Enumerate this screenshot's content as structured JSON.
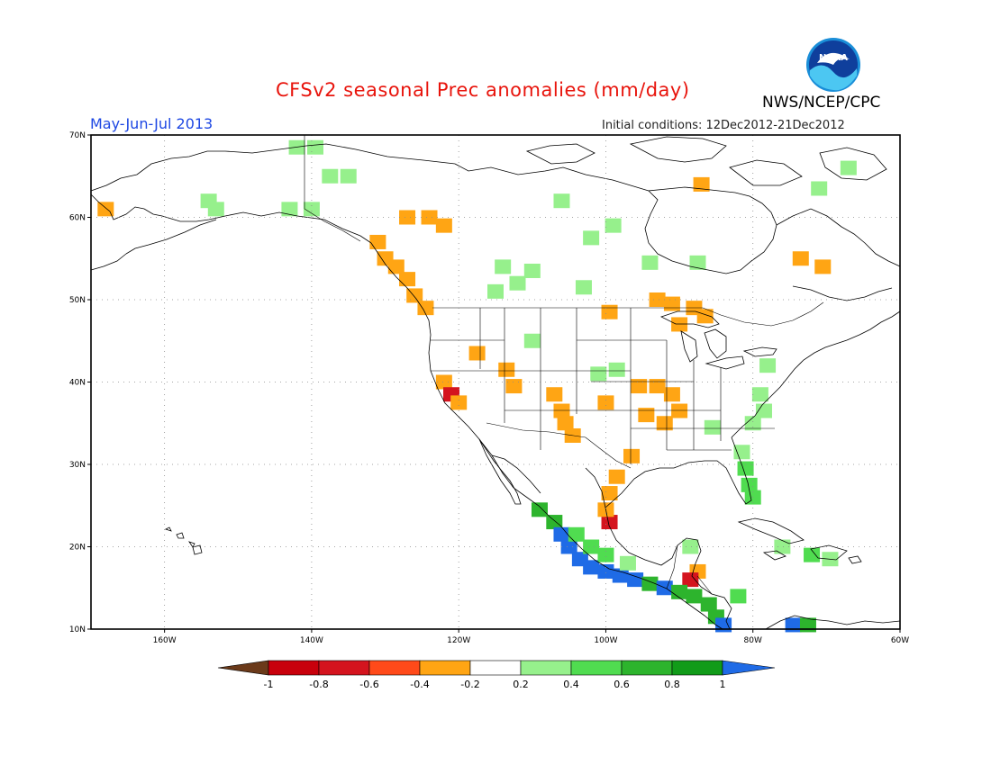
{
  "title": "CFSv2 seasonal Prec anomalies (mm/day)",
  "period": "May-Jun-Jul 2013",
  "initial_conditions": "Initial conditions: 12Dec2012-21Dec2012",
  "agency": "NWS/NCEP/CPC",
  "logo_text": "NOAA",
  "map": {
    "lon_range": [
      -170,
      -60
    ],
    "lat_range": [
      10,
      70
    ],
    "lat_ticks": [
      {
        "value": 70,
        "label": "70N"
      },
      {
        "value": 60,
        "label": "60N"
      },
      {
        "value": 50,
        "label": "50N"
      },
      {
        "value": 40,
        "label": "40N"
      },
      {
        "value": 30,
        "label": "30N"
      },
      {
        "value": 20,
        "label": "20N"
      },
      {
        "value": 10,
        "label": "10N"
      }
    ],
    "lon_ticks": [
      {
        "value": -160,
        "label": "160W"
      },
      {
        "value": -140,
        "label": "140W"
      },
      {
        "value": -120,
        "label": "120W"
      },
      {
        "value": -100,
        "label": "100W"
      },
      {
        "value": -80,
        "label": "80W"
      },
      {
        "value": -60,
        "label": "60W"
      }
    ],
    "grid": "dotted"
  },
  "colorbar": {
    "labels": [
      "-1",
      "-0.8",
      "-0.6",
      "-0.4",
      "-0.2",
      "0.2",
      "0.4",
      "0.6",
      "0.8",
      "1"
    ],
    "colors": [
      "#6b3a1a",
      "#c8000c",
      "#d4141e",
      "#ff4a1a",
      "#ffa514",
      "#ffffff",
      "#96f08c",
      "#50dc50",
      "#2db42d",
      "#119b19",
      "#1f6be6"
    ]
  },
  "anomaly_cells": [
    {
      "lon": -142,
      "lat": 68.5,
      "c": "#96f08c"
    },
    {
      "lon": -139.5,
      "lat": 68.5,
      "c": "#96f08c"
    },
    {
      "lon": -137.5,
      "lat": 65,
      "c": "#96f08c"
    },
    {
      "lon": -135,
      "lat": 65,
      "c": "#96f08c"
    },
    {
      "lon": -154,
      "lat": 62,
      "c": "#96f08c"
    },
    {
      "lon": -153,
      "lat": 61,
      "c": "#96f08c"
    },
    {
      "lon": -143,
      "lat": 61,
      "c": "#96f08c"
    },
    {
      "lon": -140,
      "lat": 61,
      "c": "#96f08c"
    },
    {
      "lon": -168,
      "lat": 61,
      "c": "#ffa514"
    },
    {
      "lon": -127,
      "lat": 60,
      "c": "#ffa514"
    },
    {
      "lon": -124,
      "lat": 60,
      "c": "#ffa514"
    },
    {
      "lon": -122,
      "lat": 59,
      "c": "#ffa514"
    },
    {
      "lon": -131,
      "lat": 57,
      "c": "#ffa514"
    },
    {
      "lon": -130,
      "lat": 55,
      "c": "#ffa514"
    },
    {
      "lon": -128.5,
      "lat": 54,
      "c": "#ffa514"
    },
    {
      "lon": -127,
      "lat": 52.5,
      "c": "#ffa514"
    },
    {
      "lon": -126,
      "lat": 50.5,
      "c": "#ffa514"
    },
    {
      "lon": -124.5,
      "lat": 49,
      "c": "#ffa514"
    },
    {
      "lon": -114,
      "lat": 54,
      "c": "#96f08c"
    },
    {
      "lon": -110,
      "lat": 53.5,
      "c": "#96f08c"
    },
    {
      "lon": -112,
      "lat": 52,
      "c": "#96f08c"
    },
    {
      "lon": -115,
      "lat": 51,
      "c": "#96f08c"
    },
    {
      "lon": -102,
      "lat": 57.5,
      "c": "#96f08c"
    },
    {
      "lon": -99,
      "lat": 59,
      "c": "#96f08c"
    },
    {
      "lon": -106,
      "lat": 62,
      "c": "#96f08c"
    },
    {
      "lon": -103,
      "lat": 51.5,
      "c": "#96f08c"
    },
    {
      "lon": -94,
      "lat": 54.5,
      "c": "#96f08c"
    },
    {
      "lon": -87.5,
      "lat": 54.5,
      "c": "#96f08c"
    },
    {
      "lon": -73.5,
      "lat": 55,
      "c": "#ffa514"
    },
    {
      "lon": -70.5,
      "lat": 54,
      "c": "#ffa514"
    },
    {
      "lon": -87,
      "lat": 64,
      "c": "#ffa514"
    },
    {
      "lon": -71,
      "lat": 63.5,
      "c": "#96f08c"
    },
    {
      "lon": -67,
      "lat": 66,
      "c": "#96f08c"
    },
    {
      "lon": -91,
      "lat": 49.5,
      "c": "#ffa514"
    },
    {
      "lon": -88,
      "lat": 49,
      "c": "#ffa514"
    },
    {
      "lon": -90,
      "lat": 47,
      "c": "#ffa514"
    },
    {
      "lon": -86.5,
      "lat": 48,
      "c": "#ffa514"
    },
    {
      "lon": -93,
      "lat": 50,
      "c": "#ffa514"
    },
    {
      "lon": -99.5,
      "lat": 48.5,
      "c": "#ffa514"
    },
    {
      "lon": -110,
      "lat": 45,
      "c": "#96f08c"
    },
    {
      "lon": -117.5,
      "lat": 43.5,
      "c": "#ffa514"
    },
    {
      "lon": -113.5,
      "lat": 41.5,
      "c": "#ffa514"
    },
    {
      "lon": -122,
      "lat": 40,
      "c": "#ffa514"
    },
    {
      "lon": -121,
      "lat": 38.5,
      "c": "#d4141e"
    },
    {
      "lon": -120,
      "lat": 37.5,
      "c": "#ffa514"
    },
    {
      "lon": -112.5,
      "lat": 39.5,
      "c": "#ffa514"
    },
    {
      "lon": -107,
      "lat": 38.5,
      "c": "#ffa514"
    },
    {
      "lon": -106,
      "lat": 36.5,
      "c": "#ffa514"
    },
    {
      "lon": -105.5,
      "lat": 35,
      "c": "#ffa514"
    },
    {
      "lon": -104.5,
      "lat": 33.5,
      "c": "#ffa514"
    },
    {
      "lon": -98.5,
      "lat": 41.5,
      "c": "#96f08c"
    },
    {
      "lon": -101,
      "lat": 41,
      "c": "#96f08c"
    },
    {
      "lon": -100,
      "lat": 37.5,
      "c": "#ffa514"
    },
    {
      "lon": -95.5,
      "lat": 39.5,
      "c": "#ffa514"
    },
    {
      "lon": -93,
      "lat": 39.5,
      "c": "#ffa514"
    },
    {
      "lon": -91,
      "lat": 38.5,
      "c": "#ffa514"
    },
    {
      "lon": -90,
      "lat": 36.5,
      "c": "#ffa514"
    },
    {
      "lon": -92,
      "lat": 35,
      "c": "#ffa514"
    },
    {
      "lon": -94.5,
      "lat": 36,
      "c": "#ffa514"
    },
    {
      "lon": -96.5,
      "lat": 31,
      "c": "#ffa514"
    },
    {
      "lon": -98.5,
      "lat": 28.5,
      "c": "#ffa514"
    },
    {
      "lon": -99.5,
      "lat": 26.5,
      "c": "#ffa514"
    },
    {
      "lon": -99.5,
      "lat": 23,
      "c": "#d4141e"
    },
    {
      "lon": -100,
      "lat": 24.5,
      "c": "#ffa514"
    },
    {
      "lon": -87.5,
      "lat": 17,
      "c": "#ffa514"
    },
    {
      "lon": -88.5,
      "lat": 16,
      "c": "#d4141e"
    },
    {
      "lon": -78,
      "lat": 42,
      "c": "#96f08c"
    },
    {
      "lon": -79,
      "lat": 38.5,
      "c": "#96f08c"
    },
    {
      "lon": -78.5,
      "lat": 36.5,
      "c": "#96f08c"
    },
    {
      "lon": -80,
      "lat": 35,
      "c": "#96f08c"
    },
    {
      "lon": -85.5,
      "lat": 34.5,
      "c": "#96f08c"
    },
    {
      "lon": -81.5,
      "lat": 31.5,
      "c": "#96f08c"
    },
    {
      "lon": -81,
      "lat": 29.5,
      "c": "#50dc50"
    },
    {
      "lon": -80.5,
      "lat": 27.5,
      "c": "#50dc50"
    },
    {
      "lon": -80,
      "lat": 26,
      "c": "#50dc50"
    },
    {
      "lon": -109,
      "lat": 24.5,
      "c": "#2db42d"
    },
    {
      "lon": -107,
      "lat": 23,
      "c": "#2db42d"
    },
    {
      "lon": -106,
      "lat": 21.5,
      "c": "#1f6be6"
    },
    {
      "lon": -105,
      "lat": 20,
      "c": "#1f6be6"
    },
    {
      "lon": -103.5,
      "lat": 18.5,
      "c": "#1f6be6"
    },
    {
      "lon": -102,
      "lat": 17.5,
      "c": "#1f6be6"
    },
    {
      "lon": -100,
      "lat": 17,
      "c": "#1f6be6"
    },
    {
      "lon": -98,
      "lat": 16.5,
      "c": "#1f6be6"
    },
    {
      "lon": -96,
      "lat": 16,
      "c": "#1f6be6"
    },
    {
      "lon": -94,
      "lat": 15.5,
      "c": "#2db42d"
    },
    {
      "lon": -92,
      "lat": 15,
      "c": "#1f6be6"
    },
    {
      "lon": -90,
      "lat": 14.5,
      "c": "#2db42d"
    },
    {
      "lon": -88,
      "lat": 14,
      "c": "#2db42d"
    },
    {
      "lon": -86,
      "lat": 13,
      "c": "#2db42d"
    },
    {
      "lon": -85,
      "lat": 11.5,
      "c": "#2db42d"
    },
    {
      "lon": -84,
      "lat": 10.5,
      "c": "#1f6be6"
    },
    {
      "lon": -104,
      "lat": 21.5,
      "c": "#50dc50"
    },
    {
      "lon": -102,
      "lat": 20,
      "c": "#50dc50"
    },
    {
      "lon": -100,
      "lat": 19,
      "c": "#50dc50"
    },
    {
      "lon": -97,
      "lat": 18,
      "c": "#96f08c"
    },
    {
      "lon": -82,
      "lat": 14,
      "c": "#50dc50"
    },
    {
      "lon": -76,
      "lat": 20,
      "c": "#96f08c"
    },
    {
      "lon": -72,
      "lat": 19,
      "c": "#50dc50"
    },
    {
      "lon": -69.5,
      "lat": 18.5,
      "c": "#96f08c"
    },
    {
      "lon": -74.5,
      "lat": 10.5,
      "c": "#1f6be6"
    },
    {
      "lon": -72.5,
      "lat": 10.5,
      "c": "#2db42d"
    },
    {
      "lon": -88.5,
      "lat": 20,
      "c": "#96f08c"
    }
  ]
}
